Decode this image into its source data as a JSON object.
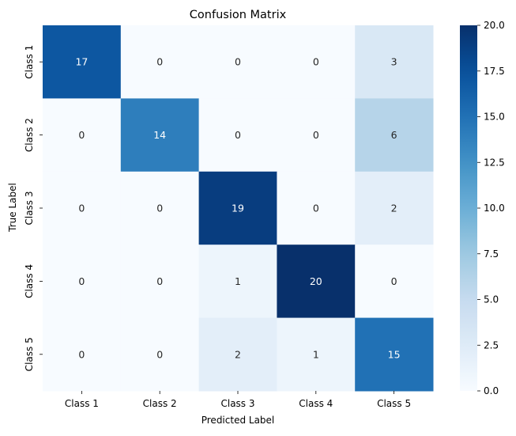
{
  "chart_data": {
    "type": "heatmap",
    "title": "Confusion Matrix",
    "xlabel": "Predicted Label",
    "ylabel": "True Label",
    "x_categories": [
      "Class 1",
      "Class 2",
      "Class 3",
      "Class 4",
      "Class 5"
    ],
    "y_categories": [
      "Class 1",
      "Class 2",
      "Class 3",
      "Class 4",
      "Class 5"
    ],
    "values": [
      [
        17,
        0,
        0,
        0,
        3
      ],
      [
        0,
        14,
        0,
        0,
        6
      ],
      [
        0,
        0,
        19,
        0,
        2
      ],
      [
        0,
        0,
        1,
        20,
        0
      ],
      [
        0,
        0,
        2,
        1,
        15
      ]
    ],
    "colorbar": {
      "min": 0,
      "max": 20,
      "ticks": [
        "0.0",
        "2.5",
        "5.0",
        "7.5",
        "10.0",
        "12.5",
        "15.0",
        "17.5",
        "20.0"
      ],
      "colormap": "Blues"
    },
    "annotations": true
  }
}
